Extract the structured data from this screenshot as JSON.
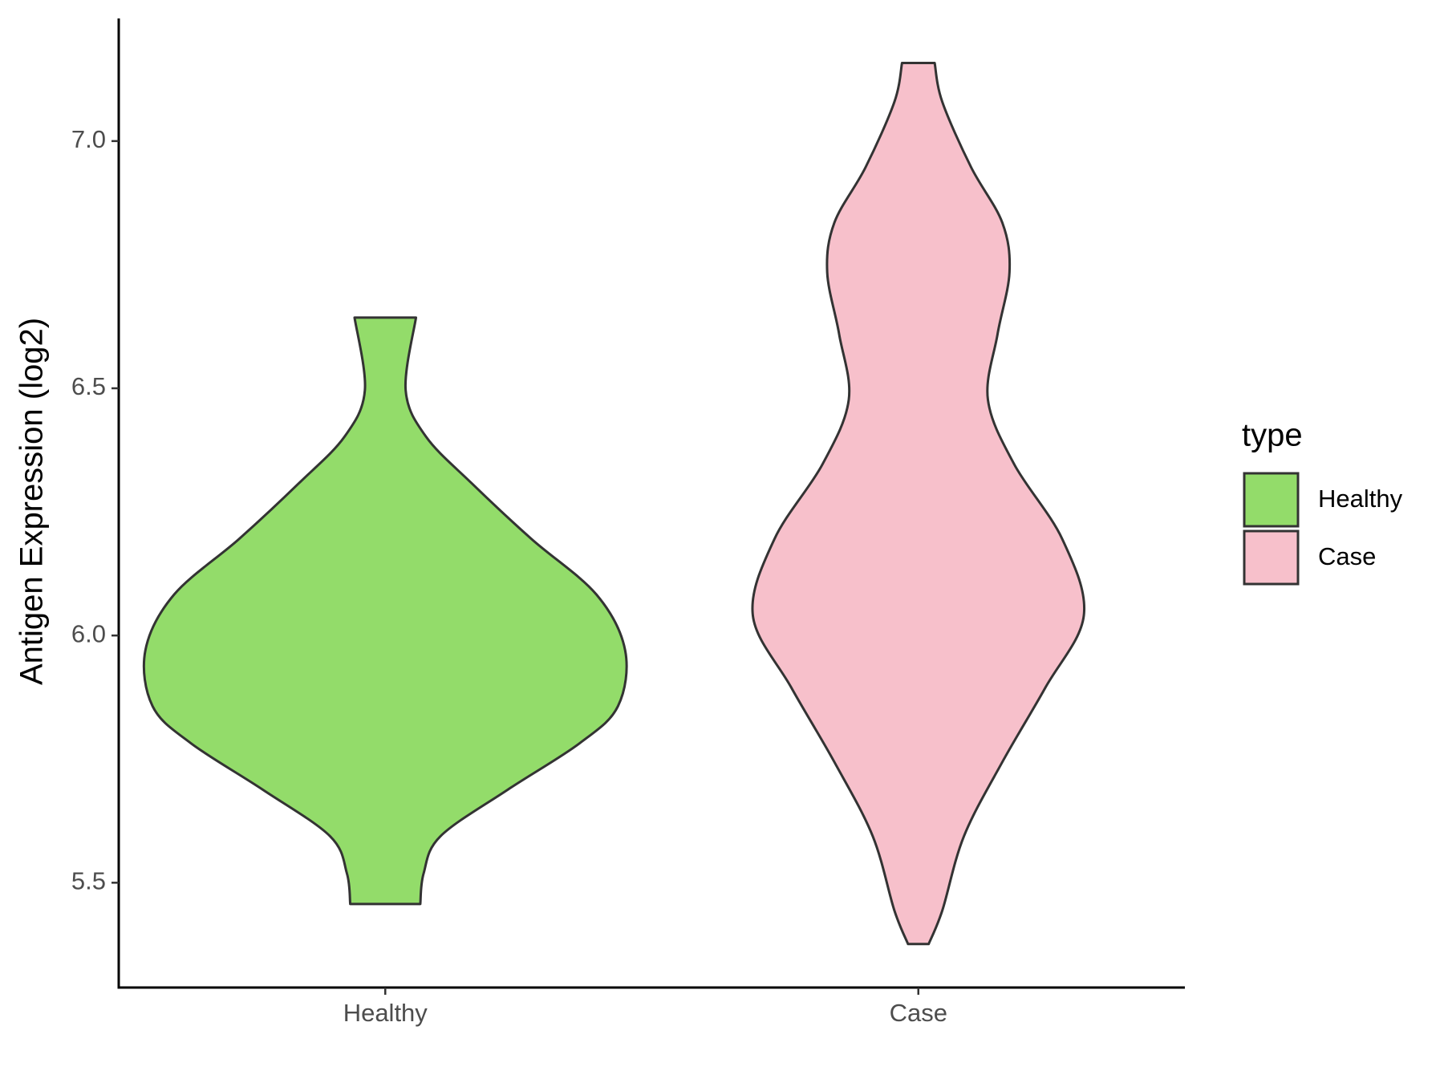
{
  "chart_data": {
    "type": "violin",
    "y_label": "Antigen Expression (log2)",
    "legend_title": "type",
    "categories": [
      "Healthy",
      "Case"
    ],
    "series": [
      {
        "name": "Healthy",
        "color": "#93dc6a",
        "y": [
          6.643,
          6.496,
          6.402,
          6.308,
          6.195,
          6.083,
          5.97,
          5.857,
          5.782,
          5.688,
          5.594,
          5.519,
          5.457
        ],
        "density": [
          0.128,
          0.085,
          0.17,
          0.36,
          0.61,
          0.88,
          1.0,
          0.97,
          0.81,
          0.51,
          0.23,
          0.16,
          0.146
        ]
      },
      {
        "name": "Case",
        "color": "#f7c0cb",
        "y": [
          7.158,
          7.079,
          6.947,
          6.835,
          6.735,
          6.609,
          6.477,
          6.346,
          6.195,
          6.041,
          5.895,
          5.744,
          5.594,
          5.444,
          5.376
        ],
        "density": [
          0.068,
          0.1,
          0.22,
          0.35,
          0.38,
          0.33,
          0.29,
          0.4,
          0.6,
          0.69,
          0.53,
          0.35,
          0.19,
          0.1,
          0.043
        ]
      }
    ],
    "ylim": [
      5.288,
      7.248
    ],
    "yticks": [
      5.5,
      {
        "value": 6.0,
        "label": "6.0"
      },
      6.5,
      {
        "value": 7.0,
        "label": "7.0"
      }
    ]
  }
}
